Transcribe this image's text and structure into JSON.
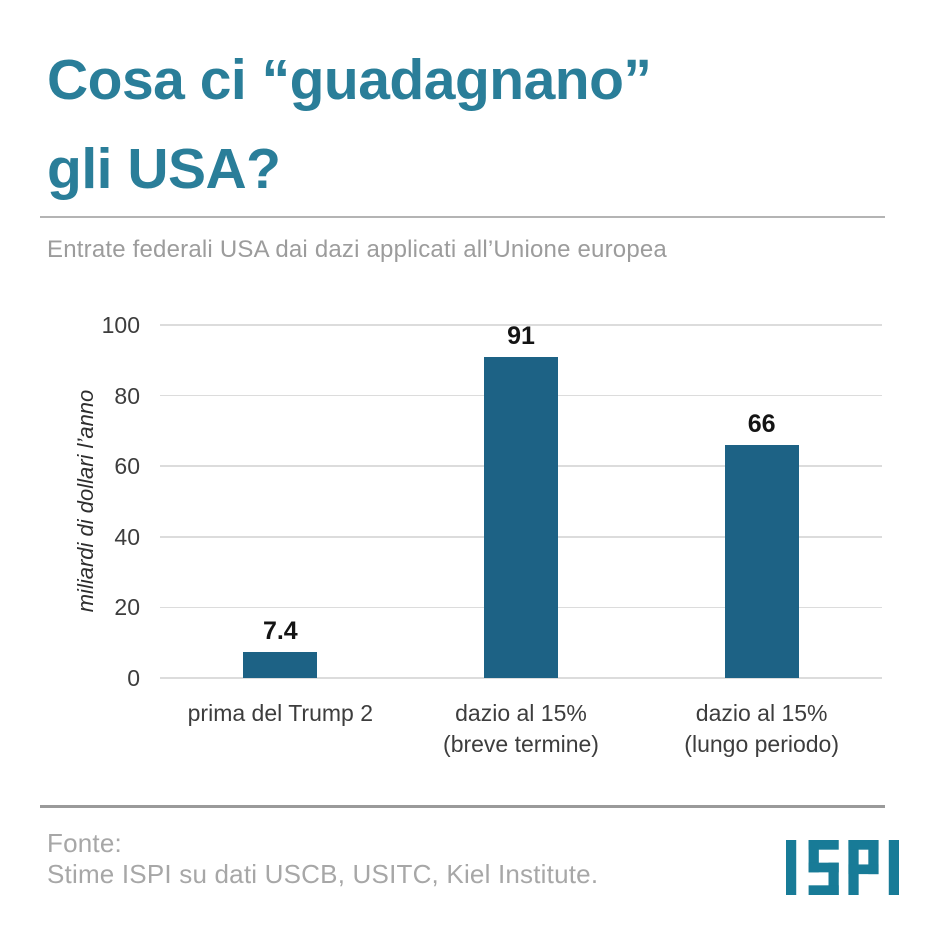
{
  "header": {
    "title_lines": [
      "Cosa ci “guadagnano”",
      "gli USA?"
    ],
    "title_color": "#2A7E99"
  },
  "chart_data": {
    "type": "bar",
    "title": "Entrate federali USA dai dazi applicati all’Unione europea",
    "categories": [
      "prima del Trump 2",
      "dazio al 15%\n(breve termine)",
      "dazio al 15%\n(lungo periodo)"
    ],
    "values": [
      7.4,
      91,
      66
    ],
    "value_labels": [
      "7.4",
      "91",
      "66"
    ],
    "xlabel": "",
    "ylabel": "miliardi di dollari l’anno",
    "ylim": [
      0,
      100
    ],
    "yticks": [
      0,
      20,
      40,
      60,
      80,
      100
    ],
    "grid": true,
    "legend": null,
    "bar_color": "#1D6285",
    "gridline_color": "#DCDCDC"
  },
  "footer": {
    "source_label": "Fonte:",
    "source_text": "Stime ISPI su dati USCB, USITC, Kiel Institute.",
    "logo_text": "ISPI",
    "logo_color": "#187B97"
  }
}
